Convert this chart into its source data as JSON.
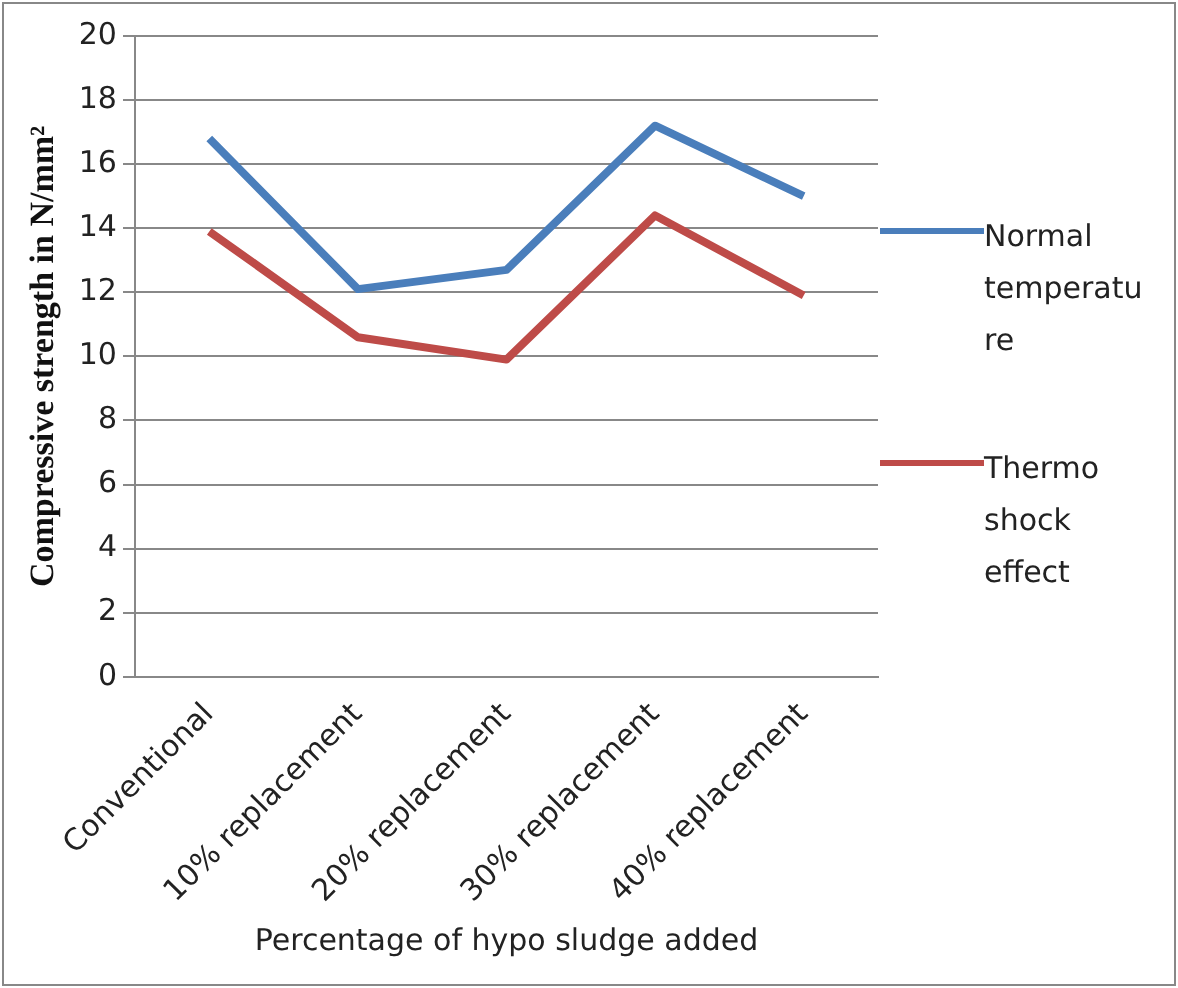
{
  "chart_data": {
    "type": "line",
    "xlabel": "Percentage of hypo sludge added",
    "ylabel": "Compressive strength in N/mm²",
    "categories": [
      "Conventional",
      "10% replacement",
      "20% replacement",
      "30% replacement",
      "40% replacement"
    ],
    "series": [
      {
        "name": "Normal temperature",
        "color": "#4a7ebb",
        "values": [
          16.8,
          12.1,
          12.7,
          17.2,
          15.0
        ]
      },
      {
        "name": "Thermo shock effect",
        "color": "#be4b48",
        "values": [
          13.9,
          10.6,
          9.9,
          14.4,
          11.9
        ]
      }
    ],
    "ylim": [
      0,
      20
    ],
    "yticks": [
      0,
      2,
      4,
      6,
      8,
      10,
      12,
      14,
      16,
      18,
      20
    ],
    "grid": "y",
    "legend": "right",
    "marker": "none"
  }
}
